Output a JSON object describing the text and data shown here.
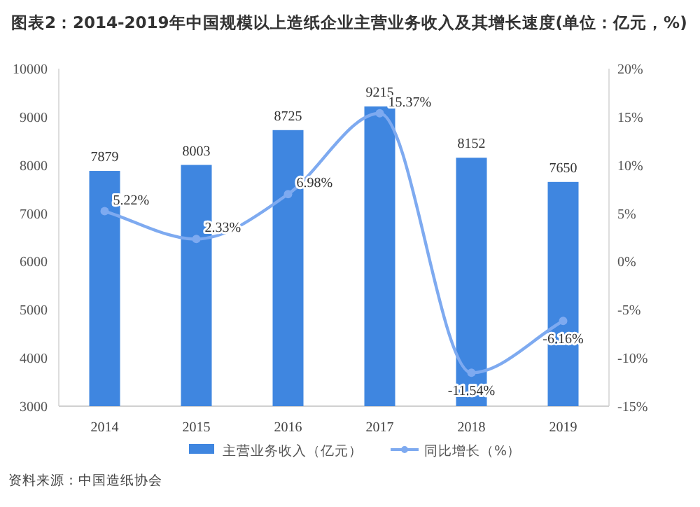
{
  "chart_data": {
    "type": "bar",
    "title": "图表2：2014-2019年中国规模以上造纸企业主营业务收入及其增长速度(单位：亿元，%)",
    "categories": [
      "2014",
      "2015",
      "2016",
      "2017",
      "2018",
      "2019"
    ],
    "series": [
      {
        "name": "主营业务收入（亿元）",
        "color": "#3f86e0",
        "values": [
          7879,
          8003,
          8725,
          9215,
          8152,
          7650
        ],
        "value_labels": [
          "7879",
          "8003",
          "8725",
          "9215",
          "8152",
          "7650"
        ]
      },
      {
        "name": "同比增长（%）",
        "type": "line",
        "axis": "y2",
        "color": "#7eaaf0",
        "marker": "circle",
        "values": [
          5.22,
          2.33,
          6.98,
          15.37,
          -11.54,
          -6.16
        ],
        "value_labels": [
          "5.22%",
          "2.33%",
          "6.98%",
          "15.37%",
          "-11.54%",
          "-6.16%"
        ]
      }
    ],
    "ylim": [
      3000,
      10000
    ],
    "yticks": [
      3000,
      4000,
      5000,
      6000,
      7000,
      8000,
      9000,
      10000
    ],
    "y2lim": [
      -15,
      20
    ],
    "y2ticks": [
      {
        "value": -15,
        "label": "-15%"
      },
      {
        "value": -10,
        "label": "-10%"
      },
      {
        "value": -5,
        "label": "-5%"
      },
      {
        "value": 0,
        "label": "0%"
      },
      {
        "value": 5,
        "label": "5%"
      },
      {
        "value": 10,
        "label": "10%"
      },
      {
        "value": 15,
        "label": "15%"
      },
      {
        "value": 20,
        "label": "20%"
      }
    ],
    "grid": false,
    "legend": "bottom",
    "annotations": [
      "资料来源：中国造纸协会"
    ]
  }
}
